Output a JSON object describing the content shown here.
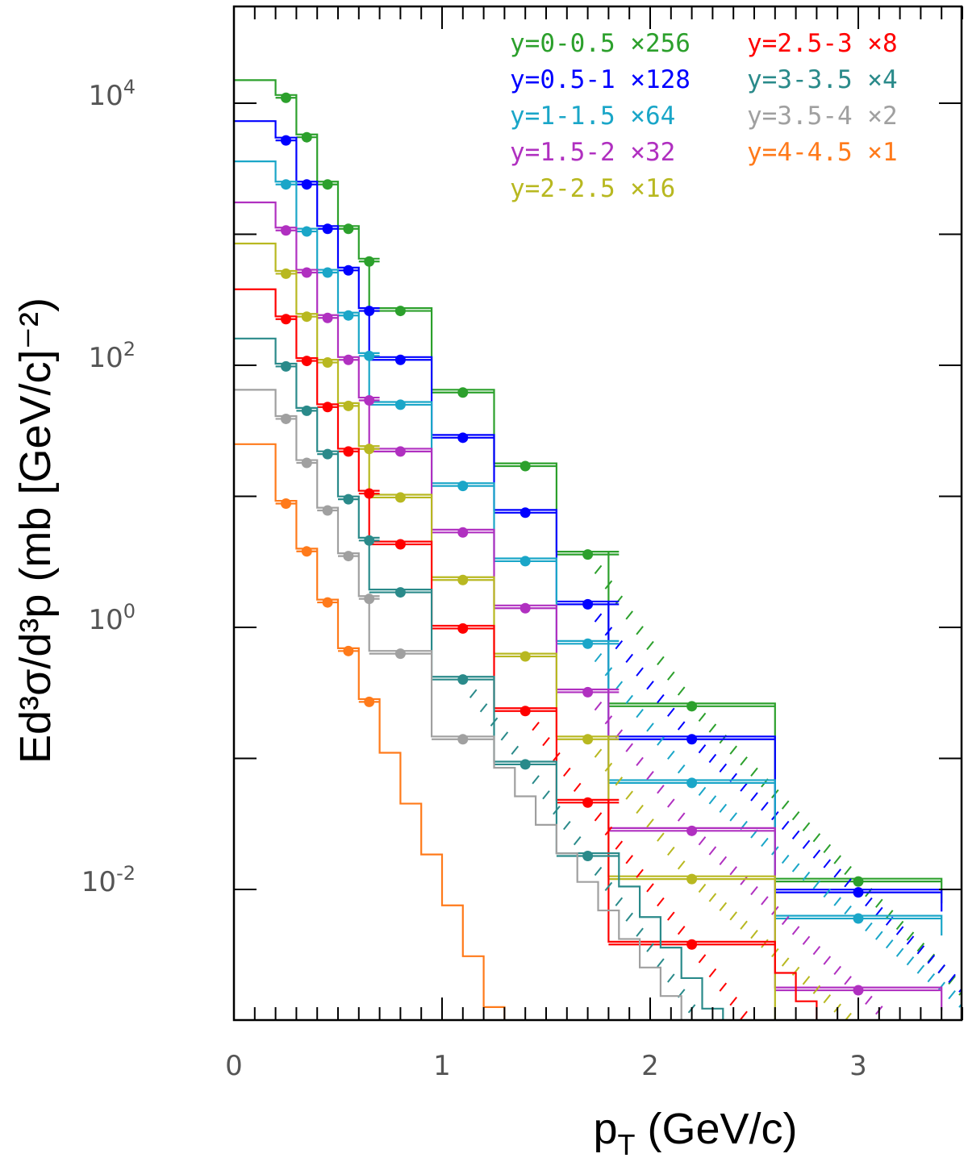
{
  "chart_data": {
    "type": "scatter",
    "xlabel": "p_T (GeV/c)",
    "ylabel": "Ed³σ/d³p (mb [GeV/c]⁻²)",
    "xlim": [
      0,
      3.5
    ],
    "ylim_log10": [
      -3.2,
      5.5
    ],
    "y_scale": "log",
    "grid": false,
    "legend_location": "top-right",
    "x_tick_labels": [
      "0",
      "1",
      "2",
      "3"
    ],
    "x_ticks": [
      0,
      1,
      2,
      3
    ],
    "y_tick_labels": [
      {
        "base": "10",
        "exp": "4",
        "value": 4
      },
      {
        "base": "10",
        "exp": "2",
        "value": 2
      },
      {
        "base": "10",
        "exp": "0",
        "value": 0
      },
      {
        "base": "10",
        "exp": "-2",
        "value": -2
      }
    ],
    "series": [
      {
        "name": "y=0-0.5",
        "factor": "×256",
        "color": "#2ca02c",
        "hatched_tail": true,
        "points": [
          [
            0.25,
            11000
          ],
          [
            0.35,
            5500
          ],
          [
            0.45,
            2400
          ],
          [
            0.55,
            1100
          ],
          [
            0.65,
            620
          ],
          [
            0.8,
            260
          ],
          [
            1.1,
            62
          ],
          [
            1.4,
            17
          ],
          [
            1.7,
            3.6
          ],
          [
            2.2,
            0.25
          ],
          [
            3.0,
            0.0115
          ]
        ],
        "xerr": [
          0.05,
          0.05,
          0.05,
          0.05,
          0.05,
          0.15,
          0.15,
          0.15,
          0.15,
          0.4,
          0.4
        ],
        "step_start": 15000
      },
      {
        "name": "y=0.5-1",
        "factor": "×128",
        "color": "#0000ff",
        "hatched_tail": true,
        "points": [
          [
            0.25,
            5200
          ],
          [
            0.35,
            2400
          ],
          [
            0.45,
            1100
          ],
          [
            0.55,
            530
          ],
          [
            0.65,
            260
          ],
          [
            0.8,
            110
          ],
          [
            1.1,
            28
          ],
          [
            1.4,
            7.5
          ],
          [
            1.7,
            1.5
          ],
          [
            2.2,
            0.14
          ],
          [
            3.0,
            0.0095
          ]
        ],
        "xerr": [
          0.05,
          0.05,
          0.05,
          0.05,
          0.05,
          0.15,
          0.15,
          0.15,
          0.15,
          0.4,
          0.4
        ],
        "step_start": 7300
      },
      {
        "name": "y=1-1.5",
        "factor": "×64",
        "color": "#1aa6c8",
        "hatched_tail": true,
        "points": [
          [
            0.25,
            2400
          ],
          [
            0.35,
            1050
          ],
          [
            0.45,
            510
          ],
          [
            0.55,
            240
          ],
          [
            0.65,
            118
          ],
          [
            0.8,
            50
          ],
          [
            1.1,
            12
          ],
          [
            1.4,
            3.2
          ],
          [
            1.7,
            0.75
          ],
          [
            2.2,
            0.065
          ],
          [
            3.0,
            0.006
          ]
        ],
        "xerr": [
          0.05,
          0.05,
          0.05,
          0.05,
          0.05,
          0.15,
          0.15,
          0.15,
          0.15,
          0.4,
          0.4
        ],
        "step_start": 3600
      },
      {
        "name": "y=1.5-2",
        "factor": "×32",
        "color": "#b030c0",
        "hatched_tail": true,
        "points": [
          [
            0.25,
            1070
          ],
          [
            0.35,
            510
          ],
          [
            0.45,
            230
          ],
          [
            0.55,
            110
          ],
          [
            0.65,
            54
          ],
          [
            0.8,
            22
          ],
          [
            1.1,
            5.3
          ],
          [
            1.4,
            1.4
          ],
          [
            1.7,
            0.32
          ],
          [
            2.2,
            0.028
          ],
          [
            3.0,
            0.0017
          ]
        ],
        "xerr": [
          0.05,
          0.05,
          0.05,
          0.05,
          0.05,
          0.15,
          0.15,
          0.15,
          0.15,
          0.4,
          0.4
        ],
        "step_start": 1750
      },
      {
        "name": "y=2-2.5",
        "factor": "×16",
        "color": "#b8b820",
        "hatched_tail": true,
        "points": [
          [
            0.25,
            500
          ],
          [
            0.35,
            235
          ],
          [
            0.45,
            105
          ],
          [
            0.55,
            49
          ],
          [
            0.65,
            23
          ],
          [
            0.8,
            9.8
          ],
          [
            1.1,
            2.3
          ],
          [
            1.4,
            0.6
          ],
          [
            1.7,
            0.14
          ],
          [
            2.2,
            0.012
          ],
          [
            3.0,
            0.0009
          ]
        ],
        "xerr": [
          0.05,
          0.05,
          0.05,
          0.05,
          0.05,
          0.15,
          0.15,
          0.15,
          0.15,
          0.4,
          0.4
        ],
        "step_start": 850
      },
      {
        "name": "y=2.5-3",
        "factor": "×8",
        "color": "#ff0000",
        "hatched_tail": true,
        "points": [
          [
            0.25,
            225
          ],
          [
            0.35,
            108
          ],
          [
            0.45,
            48
          ],
          [
            0.55,
            22
          ],
          [
            0.65,
            10.5
          ],
          [
            0.8,
            4.3
          ],
          [
            1.1,
            0.98
          ],
          [
            1.4,
            0.23
          ],
          [
            1.7,
            0.046
          ],
          [
            2.2,
            0.0038
          ]
        ],
        "xerr": [
          0.05,
          0.05,
          0.05,
          0.05,
          0.05,
          0.15,
          0.15,
          0.15,
          0.15,
          0.4
        ],
        "step_start": 380
      },
      {
        "name": "y=3-3.5",
        "factor": "×4",
        "color": "#2a8a8a",
        "hatched_tail": true,
        "points": [
          [
            0.25,
            98
          ],
          [
            0.35,
            45
          ],
          [
            0.45,
            21
          ],
          [
            0.55,
            9.5
          ],
          [
            0.65,
            4.6
          ],
          [
            0.8,
            1.85
          ],
          [
            1.1,
            0.4
          ],
          [
            1.4,
            0.09
          ],
          [
            1.7,
            0.018
          ]
        ],
        "xerr": [
          0.05,
          0.05,
          0.05,
          0.05,
          0.05,
          0.15,
          0.15,
          0.15,
          0.15
        ],
        "step_start": 160
      },
      {
        "name": "y=3.5-4",
        "factor": "×2",
        "color": "#a0a0a0",
        "hatched_tail": false,
        "points": [
          [
            0.25,
            39
          ],
          [
            0.35,
            18
          ],
          [
            0.45,
            7.8
          ],
          [
            0.55,
            3.5
          ],
          [
            0.65,
            1.65
          ],
          [
            0.8,
            0.63
          ],
          [
            1.1,
            0.14
          ]
        ],
        "xerr": [
          0.05,
          0.05,
          0.05,
          0.05,
          0.05,
          0.15,
          0.15
        ],
        "step_start": 65
      },
      {
        "name": "y=4-4.5",
        "factor": "×1",
        "color": "#ff7a1a",
        "hatched_tail": false,
        "points": [
          [
            0.25,
            8.8
          ],
          [
            0.35,
            3.8
          ],
          [
            0.45,
            1.55
          ],
          [
            0.55,
            0.66
          ],
          [
            0.65,
            0.27
          ]
        ],
        "xerr": [
          0.05,
          0.05,
          0.05,
          0.05,
          0.05
        ],
        "step_start": 25
      }
    ]
  }
}
